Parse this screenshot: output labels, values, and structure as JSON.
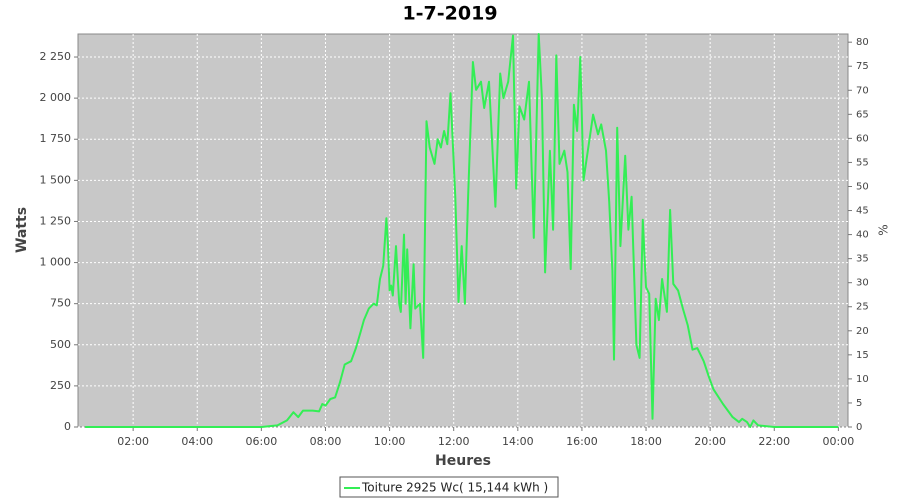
{
  "chart_data": {
    "type": "line",
    "title": "1-7-2019",
    "xlabel": "Heures",
    "ylabel": "Watts",
    "y2label": "%",
    "xlim": [
      0.28,
      24.3
    ],
    "xticks": [
      {
        "value": 2,
        "label": "02:00"
      },
      {
        "value": 4,
        "label": "04:00"
      },
      {
        "value": 6,
        "label": "06:00"
      },
      {
        "value": 8,
        "label": "08:00"
      },
      {
        "value": 10,
        "label": "10:00"
      },
      {
        "value": 12,
        "label": "12:00"
      },
      {
        "value": 14,
        "label": "14:00"
      },
      {
        "value": 16,
        "label": "16:00"
      },
      {
        "value": 18,
        "label": "18:00"
      },
      {
        "value": 20,
        "label": "20:00"
      },
      {
        "value": 22,
        "label": "22:00"
      },
      {
        "value": 24,
        "label": "00:00"
      }
    ],
    "ylim": [
      0,
      2390
    ],
    "yticks": [
      0,
      250,
      500,
      750,
      {
        "value": 1000,
        "label": "1 000"
      },
      {
        "value": 1250,
        "label": "1 250"
      },
      {
        "value": 1500,
        "label": "1 500"
      },
      {
        "value": 1750,
        "label": "1 750"
      },
      {
        "value": 2000,
        "label": "2 000"
      },
      {
        "value": 2250,
        "label": "2 250"
      }
    ],
    "y2lim": [
      0,
      81.7
    ],
    "y2ticks": [
      0,
      5,
      10,
      15,
      20,
      25,
      30,
      35,
      40,
      45,
      50,
      55,
      60,
      65,
      70,
      75,
      80
    ],
    "grid": true,
    "legend": "bottom",
    "series": [
      {
        "name": "Toiture 2925 Wc( 15,144 kWh )",
        "color": "#33ee55",
        "x": [
          0.5,
          3,
          5,
          6,
          6.5,
          6.8,
          7.0,
          7.15,
          7.3,
          7.6,
          7.8,
          7.9,
          8.0,
          8.15,
          8.3,
          8.45,
          8.6,
          8.8,
          8.95,
          9.1,
          9.2,
          9.35,
          9.5,
          9.6,
          9.7,
          9.8,
          9.9,
          9.95,
          10.0,
          10.05,
          10.1,
          10.2,
          10.3,
          10.35,
          10.45,
          10.5,
          10.55,
          10.65,
          10.75,
          10.8,
          10.95,
          11.05,
          11.15,
          11.25,
          11.4,
          11.5,
          11.6,
          11.7,
          11.8,
          11.9,
          12.05,
          12.15,
          12.25,
          12.35,
          12.45,
          12.6,
          12.7,
          12.85,
          12.95,
          13.1,
          13.3,
          13.45,
          13.55,
          13.7,
          13.85,
          13.95,
          14.05,
          14.2,
          14.35,
          14.5,
          14.65,
          14.75,
          14.85,
          15.0,
          15.1,
          15.2,
          15.3,
          15.45,
          15.55,
          15.65,
          15.75,
          15.85,
          15.95,
          16.05,
          16.2,
          16.35,
          16.5,
          16.6,
          16.75,
          16.85,
          16.95,
          17.0,
          17.1,
          17.2,
          17.35,
          17.45,
          17.55,
          17.7,
          17.8,
          17.9,
          18.0,
          18.1,
          18.2,
          18.3,
          18.4,
          18.5,
          18.65,
          18.75,
          18.85,
          19.0,
          19.15,
          19.3,
          19.45,
          19.6,
          19.8,
          19.95,
          20.1,
          20.4,
          20.7,
          20.9,
          21.0,
          21.15,
          21.25,
          21.35,
          21.5,
          22.0,
          24.0
        ],
        "values": [
          0,
          0,
          0,
          0,
          10,
          40,
          90,
          60,
          100,
          100,
          95,
          140,
          130,
          170,
          180,
          270,
          380,
          400,
          480,
          580,
          650,
          720,
          750,
          740,
          900,
          980,
          1270,
          1100,
          830,
          860,
          800,
          1100,
          750,
          700,
          1170,
          750,
          1080,
          600,
          990,
          720,
          750,
          420,
          1860,
          1700,
          1600,
          1750,
          1700,
          1800,
          1720,
          2030,
          1400,
          760,
          1100,
          750,
          1400,
          2220,
          2050,
          2100,
          1940,
          2100,
          1340,
          2150,
          2000,
          2100,
          2380,
          1450,
          1950,
          1870,
          2100,
          1150,
          2390,
          2000,
          940,
          1680,
          1200,
          2260,
          1600,
          1680,
          1550,
          960,
          1960,
          1800,
          2250,
          1500,
          1700,
          1900,
          1780,
          1840,
          1680,
          1370,
          950,
          410,
          1820,
          1100,
          1650,
          1200,
          1400,
          500,
          420,
          1260,
          850,
          810,
          50,
          780,
          650,
          900,
          700,
          1320,
          870,
          830,
          720,
          620,
          470,
          480,
          400,
          310,
          230,
          140,
          60,
          30,
          50,
          30,
          0,
          40,
          10,
          0,
          0
        ]
      }
    ]
  }
}
